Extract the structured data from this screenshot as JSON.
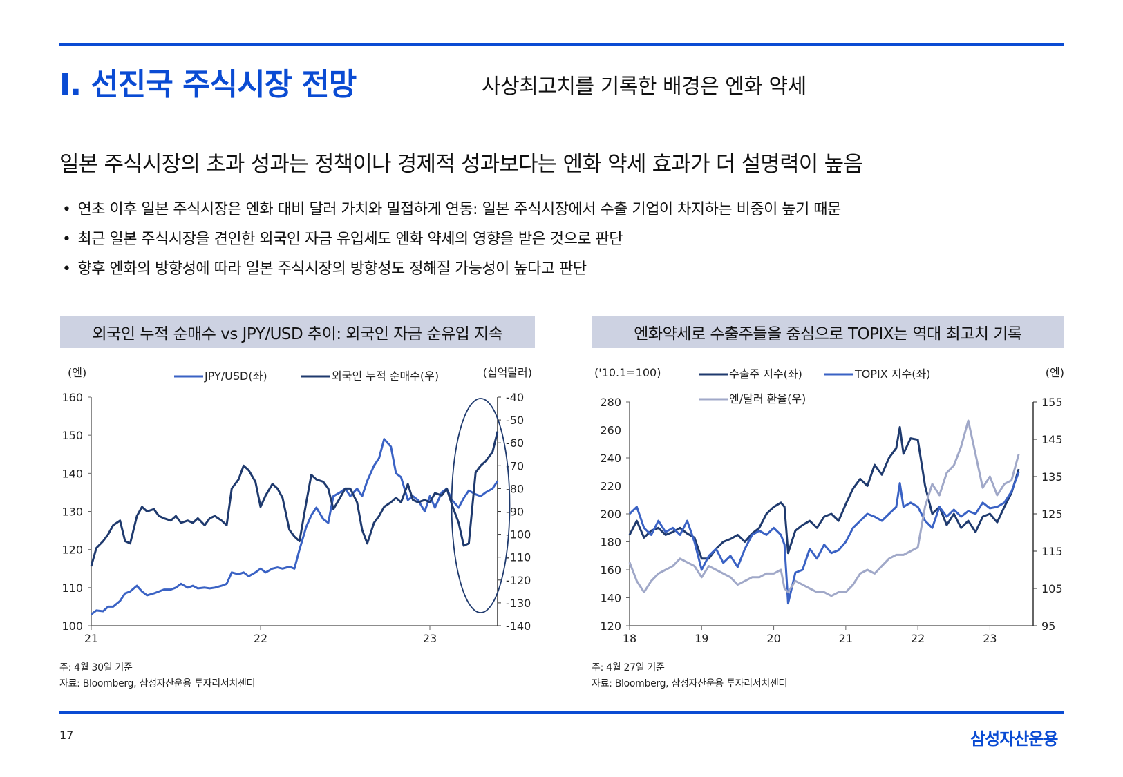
{
  "header": {
    "title": "I. 선진국 주식시장 전망",
    "subtitle": "사상최고치를 기록한 배경은 엔화 약세"
  },
  "headline": "일본 주식시장의 초과 성과는 정책이나 경제적 성과보다는 엔화 약세 효과가 더 설명력이 높음",
  "bullets": [
    "연초 이후 일본 주식시장은 엔화 대비 달러 가치와 밀접하게 연동: 일본 주식시장에서 수출 기업이 차지하는 비중이 높기 때문",
    "최근 일본 주식시장을 견인한 외국인 자금 유입세도 엔화 약세의 영향을 받은 것으로 판단",
    "향후 엔화의 방향성에 따라 일본 주식시장의 방향성도 정해질 가능성이 높다고 판단"
  ],
  "colors": {
    "brand": "#0a4bd3",
    "series_dark": "#1f3a6e",
    "series_mid": "#3a62c4",
    "series_light": "#a0a8c8",
    "title_bg": "#cdd2e2"
  },
  "chart_data": [
    {
      "type": "line",
      "title": "외국인 누적 순매수 vs JPY/USD 추이: 외국인 자금 순유입 지속",
      "ylabel_left": "(엔)",
      "ylabel_right": "(십억달러)",
      "ylim_left": [
        100,
        160
      ],
      "ylim_right": [
        -140,
        -40
      ],
      "yticks_left": [
        "160",
        "150",
        "140",
        "130",
        "120",
        "110",
        "100"
      ],
      "yticks_right": [
        "-40",
        "-50",
        "-60",
        "-70",
        "-80",
        "-90",
        "-100",
        "-110",
        "-120",
        "-130",
        "-140"
      ],
      "xlim": [
        21,
        23.4
      ],
      "xticks": [
        "21",
        "22",
        "23"
      ],
      "legend": [
        "JPY/USD(좌)",
        "외국인 누적 순매수(우)"
      ],
      "annotation": "ellipse around 2023 H1 period",
      "series": [
        {
          "name": "JPY/USD(좌)",
          "axis": "left",
          "x": [
            21.0,
            21.03,
            21.07,
            21.1,
            21.13,
            21.17,
            21.2,
            21.23,
            21.27,
            21.3,
            21.33,
            21.37,
            21.4,
            21.43,
            21.47,
            21.5,
            21.53,
            21.57,
            21.6,
            21.63,
            21.67,
            21.7,
            21.73,
            21.77,
            21.8,
            21.83,
            21.87,
            21.9,
            21.93,
            21.97,
            22.0,
            22.03,
            22.07,
            22.1,
            22.13,
            22.17,
            22.2,
            22.23,
            22.27,
            22.3,
            22.33,
            22.37,
            22.4,
            22.43,
            22.47,
            22.5,
            22.53,
            22.57,
            22.6,
            22.63,
            22.67,
            22.7,
            22.73,
            22.77,
            22.8,
            22.83,
            22.87,
            22.9,
            22.93,
            22.97,
            23.0,
            23.03,
            23.07,
            23.1,
            23.13,
            23.17,
            23.2,
            23.23,
            23.27,
            23.3,
            23.33,
            23.37,
            23.4
          ],
          "y": [
            103,
            104,
            103.8,
            105,
            105,
            106.5,
            108.5,
            109,
            110.5,
            109,
            108,
            108.5,
            109,
            109.5,
            109.5,
            110,
            111,
            110,
            110.5,
            109.8,
            110,
            109.8,
            110,
            110.5,
            111,
            114,
            113.5,
            114,
            113,
            114,
            115,
            114,
            115,
            115.3,
            115,
            115.5,
            115,
            120,
            126,
            129,
            131,
            128,
            127,
            134,
            135,
            136,
            134,
            136,
            134,
            138,
            142,
            144,
            149,
            147,
            140,
            139,
            133,
            134,
            133,
            130,
            134,
            131,
            135,
            136,
            133,
            131,
            133.5,
            135.5,
            134.5,
            134,
            135,
            136,
            138
          ]
        },
        {
          "name": "외국인 누적 순매수(우)",
          "axis": "right",
          "x": [
            21.0,
            21.03,
            21.07,
            21.1,
            21.13,
            21.17,
            21.2,
            21.23,
            21.27,
            21.3,
            21.33,
            21.37,
            21.4,
            21.43,
            21.47,
            21.5,
            21.53,
            21.57,
            21.6,
            21.63,
            21.67,
            21.7,
            21.73,
            21.77,
            21.8,
            21.83,
            21.87,
            21.9,
            21.93,
            21.97,
            22.0,
            22.03,
            22.07,
            22.1,
            22.13,
            22.17,
            22.2,
            22.23,
            22.27,
            22.3,
            22.33,
            22.37,
            22.4,
            22.43,
            22.47,
            22.5,
            22.53,
            22.57,
            22.6,
            22.63,
            22.67,
            22.7,
            22.73,
            22.77,
            22.8,
            22.83,
            22.87,
            22.9,
            22.93,
            22.97,
            23.0,
            23.03,
            23.07,
            23.1,
            23.13,
            23.17,
            23.2,
            23.23,
            23.27,
            23.3,
            23.33,
            23.37,
            23.4
          ],
          "y": [
            -114,
            -106,
            -103,
            -100,
            -96,
            -94,
            -103,
            -104,
            -92,
            -88,
            -90,
            -89,
            -92,
            -93,
            -94,
            -92,
            -95,
            -94,
            -95,
            -93,
            -96,
            -93,
            -92,
            -94,
            -96,
            -80,
            -76,
            -70,
            -72,
            -77,
            -88,
            -83,
            -78,
            -80,
            -84,
            -98,
            -101,
            -103,
            -86,
            -74,
            -76,
            -77,
            -80,
            -89,
            -84,
            -80,
            -80,
            -86,
            -98,
            -104,
            -95,
            -92,
            -88,
            -86,
            -84,
            -86,
            -78,
            -85,
            -86,
            -85,
            -86,
            -82,
            -83,
            -80,
            -87,
            -95,
            -105,
            -104,
            -73,
            -70,
            -68,
            -64,
            -55
          ]
        }
      ],
      "notes": [
        "주: 4월 30일 기준",
        "자료: Bloomberg, 삼성자산운용 투자리서치센터"
      ]
    },
    {
      "type": "line",
      "title": "엔화약세로 수출주들을 중심으로 TOPIX는 역대 최고치 기록",
      "ylabel_left": "('10.1=100)",
      "ylabel_right": "(엔)",
      "ylim_left": [
        120,
        280
      ],
      "ylim_right": [
        95,
        155
      ],
      "yticks_left": [
        "280",
        "260",
        "240",
        "220",
        "200",
        "180",
        "160",
        "140",
        "120"
      ],
      "yticks_right": [
        "155",
        "145",
        "135",
        "125",
        "115",
        "105",
        "95"
      ],
      "xlim": [
        18,
        23.6
      ],
      "xticks": [
        "18",
        "19",
        "20",
        "21",
        "22",
        "23"
      ],
      "legend": [
        "수출주 지수(좌)",
        "TOPIX 지수(좌)",
        "엔/달러 환율(우)"
      ],
      "series": [
        {
          "name": "수출주 지수(좌)",
          "axis": "left",
          "x": [
            18.0,
            18.1,
            18.2,
            18.3,
            18.4,
            18.5,
            18.6,
            18.7,
            18.8,
            18.9,
            19.0,
            19.1,
            19.2,
            19.3,
            19.4,
            19.5,
            19.6,
            19.7,
            19.8,
            19.9,
            20.0,
            20.1,
            20.15,
            20.2,
            20.3,
            20.4,
            20.5,
            20.6,
            20.7,
            20.8,
            20.9,
            21.0,
            21.1,
            21.2,
            21.3,
            21.4,
            21.5,
            21.6,
            21.7,
            21.75,
            21.8,
            21.9,
            22.0,
            22.1,
            22.2,
            22.3,
            22.4,
            22.5,
            22.6,
            22.7,
            22.8,
            22.9,
            23.0,
            23.1,
            23.2,
            23.3,
            23.4
          ],
          "y": [
            185,
            195,
            183,
            188,
            190,
            185,
            187,
            190,
            186,
            183,
            168,
            168,
            175,
            180,
            182,
            185,
            180,
            186,
            190,
            200,
            205,
            208,
            205,
            172,
            188,
            192,
            195,
            190,
            198,
            200,
            195,
            207,
            218,
            225,
            220,
            235,
            228,
            240,
            247,
            262,
            243,
            254,
            253,
            220,
            200,
            205,
            192,
            200,
            190,
            195,
            187,
            198,
            200,
            194,
            205,
            215,
            232
          ]
        },
        {
          "name": "TOPIX 지수(좌)",
          "axis": "left",
          "x": [
            18.0,
            18.1,
            18.2,
            18.3,
            18.4,
            18.5,
            18.6,
            18.7,
            18.8,
            18.9,
            19.0,
            19.1,
            19.2,
            19.3,
            19.4,
            19.5,
            19.6,
            19.7,
            19.8,
            19.9,
            20.0,
            20.1,
            20.15,
            20.2,
            20.3,
            20.4,
            20.5,
            20.6,
            20.7,
            20.8,
            20.9,
            21.0,
            21.1,
            21.2,
            21.3,
            21.4,
            21.5,
            21.6,
            21.7,
            21.75,
            21.8,
            21.9,
            22.0,
            22.1,
            22.2,
            22.3,
            22.4,
            22.5,
            22.6,
            22.7,
            22.8,
            22.9,
            23.0,
            23.1,
            23.2,
            23.3,
            23.4
          ],
          "y": [
            200,
            205,
            190,
            185,
            195,
            187,
            190,
            185,
            195,
            180,
            160,
            170,
            175,
            165,
            170,
            162,
            175,
            185,
            188,
            185,
            190,
            185,
            178,
            136,
            158,
            160,
            175,
            168,
            178,
            172,
            174,
            180,
            190,
            195,
            200,
            198,
            195,
            200,
            205,
            222,
            205,
            208,
            205,
            195,
            190,
            205,
            198,
            203,
            198,
            202,
            200,
            208,
            204,
            205,
            208,
            216,
            230
          ]
        },
        {
          "name": "엔/달러 환율(우)",
          "axis": "right",
          "x": [
            18.0,
            18.1,
            18.2,
            18.3,
            18.4,
            18.5,
            18.6,
            18.7,
            18.8,
            18.9,
            19.0,
            19.1,
            19.2,
            19.3,
            19.4,
            19.5,
            19.6,
            19.7,
            19.8,
            19.9,
            20.0,
            20.1,
            20.15,
            20.2,
            20.3,
            20.4,
            20.5,
            20.6,
            20.7,
            20.8,
            20.9,
            21.0,
            21.1,
            21.2,
            21.3,
            21.4,
            21.5,
            21.6,
            21.7,
            21.75,
            21.8,
            21.9,
            22.0,
            22.1,
            22.2,
            22.3,
            22.4,
            22.5,
            22.6,
            22.7,
            22.8,
            22.9,
            23.0,
            23.1,
            23.2,
            23.3,
            23.4
          ],
          "y": [
            112,
            107,
            104,
            107,
            109,
            110,
            111,
            113,
            112,
            111,
            108,
            111,
            110,
            109,
            108,
            106,
            107,
            108,
            108,
            109,
            109,
            110,
            105,
            104,
            107,
            106,
            105,
            104,
            104,
            103,
            104,
            104,
            106,
            109,
            110,
            109,
            111,
            113,
            114,
            114,
            114,
            115,
            116,
            127,
            133,
            130,
            136,
            138,
            143,
            150,
            141,
            132,
            135,
            130,
            133,
            134,
            141
          ]
        }
      ],
      "notes": [
        "주: 4월 27일 기준",
        "자료: Bloomberg, 삼성자산운용 투자리서치센터"
      ]
    }
  ],
  "footer": {
    "page_number": "17",
    "logo_text": "삼성자산운용"
  }
}
